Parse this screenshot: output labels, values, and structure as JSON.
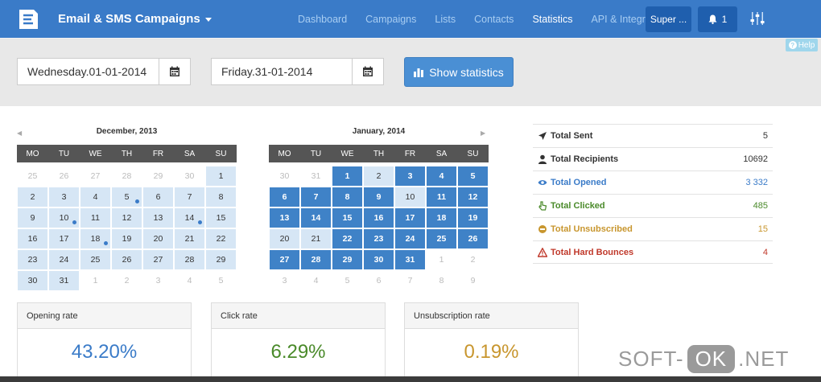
{
  "nav": {
    "brand": "Email & SMS Campaigns",
    "links": [
      {
        "label": "Dashboard",
        "active": false
      },
      {
        "label": "Campaigns",
        "active": false
      },
      {
        "label": "Lists",
        "active": false
      },
      {
        "label": "Contacts",
        "active": false
      },
      {
        "label": "Statistics",
        "active": true
      },
      {
        "label": "API & Integration",
        "active": false
      }
    ],
    "user_button": "Super ...",
    "notifications_count": "1",
    "accent_color": "#3a7bc8"
  },
  "help_label": "Help",
  "filter": {
    "start_date": "Wednesday.01-01-2014",
    "end_date": "Friday.31-01-2014",
    "show_button": "Show statistics"
  },
  "calendars": [
    {
      "title": "December, 2013",
      "weekdays": [
        "MO",
        "TU",
        "WE",
        "TH",
        "FR",
        "SA",
        "SU"
      ],
      "weeks": [
        [
          {
            "d": "25",
            "s": "muted"
          },
          {
            "d": "26",
            "s": "muted"
          },
          {
            "d": "27",
            "s": "muted"
          },
          {
            "d": "28",
            "s": "muted"
          },
          {
            "d": "29",
            "s": "muted"
          },
          {
            "d": "30",
            "s": "muted"
          },
          {
            "d": "1",
            "s": "light"
          }
        ],
        [
          {
            "d": "2",
            "s": "light"
          },
          {
            "d": "3",
            "s": "light"
          },
          {
            "d": "4",
            "s": "light"
          },
          {
            "d": "5",
            "s": "light",
            "dot": true
          },
          {
            "d": "6",
            "s": "light"
          },
          {
            "d": "7",
            "s": "light"
          },
          {
            "d": "8",
            "s": "light"
          }
        ],
        [
          {
            "d": "9",
            "s": "light"
          },
          {
            "d": "10",
            "s": "light",
            "dot": true
          },
          {
            "d": "11",
            "s": "light"
          },
          {
            "d": "12",
            "s": "light"
          },
          {
            "d": "13",
            "s": "light"
          },
          {
            "d": "14",
            "s": "light",
            "dot": true
          },
          {
            "d": "15",
            "s": "light"
          }
        ],
        [
          {
            "d": "16",
            "s": "light"
          },
          {
            "d": "17",
            "s": "light"
          },
          {
            "d": "18",
            "s": "light",
            "dot": true
          },
          {
            "d": "19",
            "s": "light"
          },
          {
            "d": "20",
            "s": "light"
          },
          {
            "d": "21",
            "s": "light"
          },
          {
            "d": "22",
            "s": "light"
          }
        ],
        [
          {
            "d": "23",
            "s": "light"
          },
          {
            "d": "24",
            "s": "light"
          },
          {
            "d": "25",
            "s": "light"
          },
          {
            "d": "26",
            "s": "light"
          },
          {
            "d": "27",
            "s": "light"
          },
          {
            "d": "28",
            "s": "light"
          },
          {
            "d": "29",
            "s": "light"
          }
        ],
        [
          {
            "d": "30",
            "s": "light"
          },
          {
            "d": "31",
            "s": "light"
          },
          {
            "d": "1",
            "s": "muted"
          },
          {
            "d": "2",
            "s": "muted"
          },
          {
            "d": "3",
            "s": "muted"
          },
          {
            "d": "4",
            "s": "muted"
          },
          {
            "d": "5",
            "s": "muted"
          }
        ]
      ]
    },
    {
      "title": "January, 2014",
      "weekdays": [
        "MO",
        "TU",
        "WE",
        "TH",
        "FR",
        "SA",
        "SU"
      ],
      "weeks": [
        [
          {
            "d": "30",
            "s": "muted"
          },
          {
            "d": "31",
            "s": "muted"
          },
          {
            "d": "1",
            "s": "dark"
          },
          {
            "d": "2",
            "s": "light"
          },
          {
            "d": "3",
            "s": "dark"
          },
          {
            "d": "4",
            "s": "dark"
          },
          {
            "d": "5",
            "s": "dark"
          }
        ],
        [
          {
            "d": "6",
            "s": "dark"
          },
          {
            "d": "7",
            "s": "dark"
          },
          {
            "d": "8",
            "s": "dark"
          },
          {
            "d": "9",
            "s": "dark"
          },
          {
            "d": "10",
            "s": "light"
          },
          {
            "d": "11",
            "s": "dark"
          },
          {
            "d": "12",
            "s": "dark"
          }
        ],
        [
          {
            "d": "13",
            "s": "dark"
          },
          {
            "d": "14",
            "s": "dark"
          },
          {
            "d": "15",
            "s": "dark"
          },
          {
            "d": "16",
            "s": "dark"
          },
          {
            "d": "17",
            "s": "dark"
          },
          {
            "d": "18",
            "s": "dark"
          },
          {
            "d": "19",
            "s": "dark"
          }
        ],
        [
          {
            "d": "20",
            "s": "light"
          },
          {
            "d": "21",
            "s": "light"
          },
          {
            "d": "22",
            "s": "dark"
          },
          {
            "d": "23",
            "s": "dark"
          },
          {
            "d": "24",
            "s": "dark"
          },
          {
            "d": "25",
            "s": "dark"
          },
          {
            "d": "26",
            "s": "dark"
          }
        ],
        [
          {
            "d": "27",
            "s": "dark"
          },
          {
            "d": "28",
            "s": "dark"
          },
          {
            "d": "29",
            "s": "dark"
          },
          {
            "d": "30",
            "s": "dark"
          },
          {
            "d": "31",
            "s": "dark"
          },
          {
            "d": "1",
            "s": "muted"
          },
          {
            "d": "2",
            "s": "muted"
          }
        ],
        [
          {
            "d": "3",
            "s": "muted"
          },
          {
            "d": "4",
            "s": "muted"
          },
          {
            "d": "5",
            "s": "muted"
          },
          {
            "d": "6",
            "s": "muted"
          },
          {
            "d": "7",
            "s": "muted"
          },
          {
            "d": "8",
            "s": "muted"
          },
          {
            "d": "9",
            "s": "muted"
          }
        ]
      ]
    }
  ],
  "totals": [
    {
      "label": "Total Sent",
      "value": "5",
      "icon": "send-icon",
      "color": "#333333"
    },
    {
      "label": "Total Recipients",
      "value": "10692",
      "icon": "user-icon",
      "color": "#333333"
    },
    {
      "label": "Total Opened",
      "value": "3 332",
      "icon": "eye-icon",
      "color": "#3a7bc8"
    },
    {
      "label": "Total Clicked",
      "value": "485",
      "icon": "pointer-icon",
      "color": "#4a8a2a"
    },
    {
      "label": "Total Unsubscribed",
      "value": "15",
      "icon": "unsubscribe-icon",
      "color": "#c8962e"
    },
    {
      "label": "Total Hard Bounces",
      "value": "4",
      "icon": "warning-icon",
      "color": "#c0392b"
    }
  ],
  "rates": [
    {
      "label": "Opening rate",
      "value": "43.20%",
      "color": "#3a7bc8"
    },
    {
      "label": "Click rate",
      "value": "6.29%",
      "color": "#4a8a2a"
    },
    {
      "label": "Unsubscription rate",
      "value": "0.19%",
      "color": "#c8962e"
    }
  ],
  "watermark": {
    "left": "SOFT-",
    "mid": "OK",
    "right": ".NET"
  }
}
